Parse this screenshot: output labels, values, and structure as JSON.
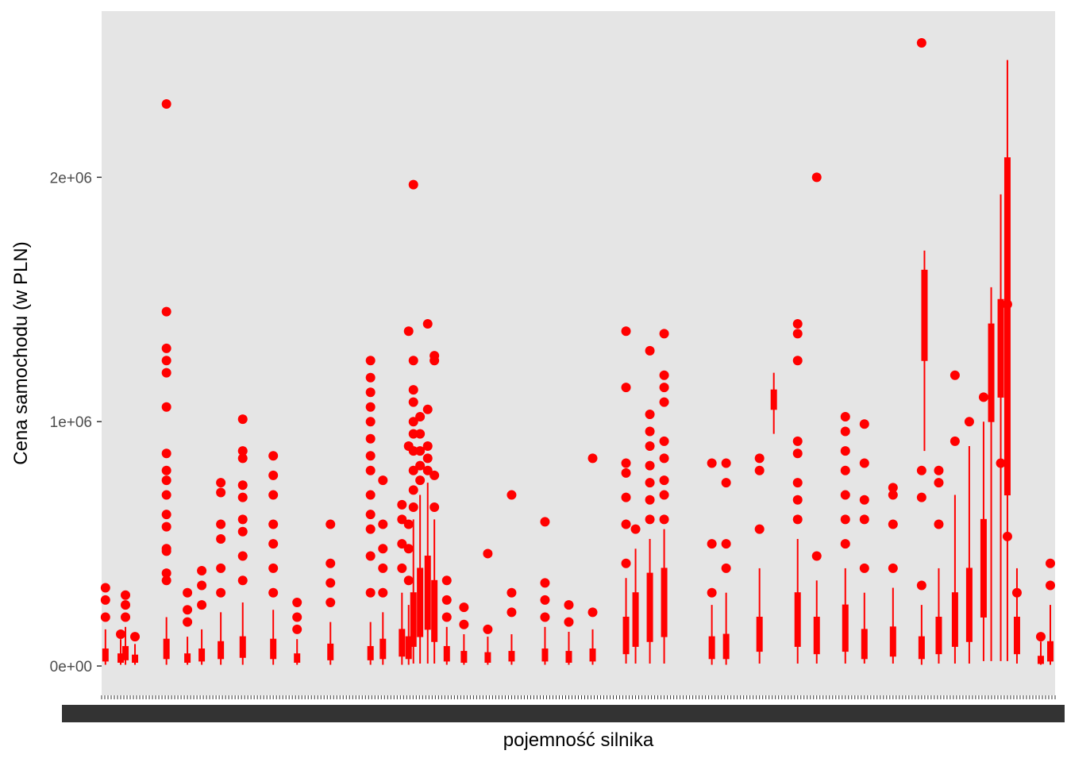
{
  "chart_data": {
    "type": "boxplot",
    "xlabel": "pojemność silnika",
    "ylabel": "Cena samochodu (w PLN)",
    "y_ticks": [
      {
        "value": 0,
        "label": "0e+00"
      },
      {
        "value": 1000000,
        "label": "1e+06"
      },
      {
        "value": 2000000,
        "label": "2e+06"
      }
    ],
    "ylim": [
      -120000,
      2680000
    ],
    "x_range": [
      0,
      100
    ],
    "x_tick_labels": "overlapping engine capacity category labels (illegible)",
    "grid": false,
    "background": "#e5e5e5",
    "color": "#ff0000",
    "boxes": [
      {
        "x": 0.4,
        "low": 5000,
        "q1": 20000,
        "q3": 70000,
        "high": 150000,
        "outliers": [
          200000,
          270000,
          320000
        ]
      },
      {
        "x": 2.0,
        "low": 5000,
        "q1": 15000,
        "q3": 50000,
        "high": 110000,
        "outliers": [
          130000
        ]
      },
      {
        "x": 2.5,
        "low": 5000,
        "q1": 25000,
        "q3": 80000,
        "high": 160000,
        "outliers": [
          200000,
          250000,
          290000
        ]
      },
      {
        "x": 3.5,
        "low": 5000,
        "q1": 15000,
        "q3": 45000,
        "high": 90000,
        "outliers": [
          120000
        ]
      },
      {
        "x": 6.8,
        "low": 5000,
        "q1": 30000,
        "q3": 110000,
        "high": 200000,
        "outliers": [
          350000,
          380000,
          470000,
          480000,
          570000,
          620000,
          700000,
          760000,
          800000,
          870000,
          1060000,
          1200000,
          1250000,
          1300000,
          1450000,
          2300000
        ]
      },
      {
        "x": 9.0,
        "low": 5000,
        "q1": 15000,
        "q3": 50000,
        "high": 120000,
        "outliers": [
          180000,
          230000,
          300000
        ]
      },
      {
        "x": 10.5,
        "low": 5000,
        "q1": 20000,
        "q3": 70000,
        "high": 150000,
        "outliers": [
          250000,
          330000,
          390000
        ]
      },
      {
        "x": 12.5,
        "low": 5000,
        "q1": 30000,
        "q3": 100000,
        "high": 220000,
        "outliers": [
          300000,
          400000,
          520000,
          580000,
          710000,
          750000
        ]
      },
      {
        "x": 14.8,
        "low": 5000,
        "q1": 35000,
        "q3": 120000,
        "high": 260000,
        "outliers": [
          350000,
          450000,
          550000,
          600000,
          690000,
          740000,
          850000,
          880000,
          1010000
        ]
      },
      {
        "x": 18.0,
        "low": 5000,
        "q1": 30000,
        "q3": 110000,
        "high": 230000,
        "outliers": [
          300000,
          400000,
          500000,
          580000,
          700000,
          780000,
          860000
        ]
      },
      {
        "x": 20.5,
        "low": 5000,
        "q1": 15000,
        "q3": 50000,
        "high": 110000,
        "outliers": [
          150000,
          200000,
          260000
        ]
      },
      {
        "x": 24.0,
        "low": 5000,
        "q1": 25000,
        "q3": 90000,
        "high": 180000,
        "outliers": [
          260000,
          340000,
          420000,
          580000
        ]
      },
      {
        "x": 28.2,
        "low": 5000,
        "q1": 25000,
        "q3": 80000,
        "high": 180000,
        "outliers": [
          300000,
          450000,
          560000,
          620000,
          700000,
          800000,
          860000,
          930000,
          1000000,
          1060000,
          1120000,
          1180000,
          1250000
        ]
      },
      {
        "x": 29.5,
        "low": 5000,
        "q1": 30000,
        "q3": 110000,
        "high": 220000,
        "outliers": [
          300000,
          400000,
          480000,
          580000,
          760000
        ]
      },
      {
        "x": 31.5,
        "low": 5000,
        "q1": 40000,
        "q3": 150000,
        "high": 300000,
        "outliers": [
          400000,
          500000,
          600000,
          660000
        ]
      },
      {
        "x": 32.2,
        "low": 5000,
        "q1": 30000,
        "q3": 120000,
        "high": 250000,
        "outliers": [
          350000,
          480000,
          580000,
          900000,
          1370000
        ]
      },
      {
        "x": 32.7,
        "low": 10000,
        "q1": 80000,
        "q3": 300000,
        "high": 600000,
        "outliers": [
          650000,
          720000,
          800000,
          880000,
          950000,
          1000000,
          1080000,
          1130000,
          1250000,
          1970000
        ]
      },
      {
        "x": 33.4,
        "low": 10000,
        "q1": 120000,
        "q3": 400000,
        "high": 700000,
        "outliers": [
          760000,
          820000,
          880000,
          950000,
          1020000
        ]
      },
      {
        "x": 34.2,
        "low": 10000,
        "q1": 150000,
        "q3": 450000,
        "high": 750000,
        "outliers": [
          800000,
          850000,
          900000,
          1050000,
          1400000
        ]
      },
      {
        "x": 34.9,
        "low": 10000,
        "q1": 100000,
        "q3": 350000,
        "high": 600000,
        "outliers": [
          650000,
          780000,
          1250000,
          1270000
        ]
      },
      {
        "x": 36.2,
        "low": 5000,
        "q1": 20000,
        "q3": 80000,
        "high": 160000,
        "outliers": [
          200000,
          270000,
          350000
        ]
      },
      {
        "x": 38.0,
        "low": 5000,
        "q1": 15000,
        "q3": 60000,
        "high": 130000,
        "outliers": [
          170000,
          240000
        ]
      },
      {
        "x": 40.5,
        "low": 5000,
        "q1": 15000,
        "q3": 55000,
        "high": 120000,
        "outliers": [
          150000,
          460000
        ]
      },
      {
        "x": 43.0,
        "low": 5000,
        "q1": 20000,
        "q3": 60000,
        "high": 130000,
        "outliers": [
          220000,
          300000,
          700000
        ]
      },
      {
        "x": 46.5,
        "low": 5000,
        "q1": 20000,
        "q3": 70000,
        "high": 160000,
        "outliers": [
          200000,
          270000,
          340000,
          590000
        ]
      },
      {
        "x": 49.0,
        "low": 5000,
        "q1": 15000,
        "q3": 60000,
        "high": 140000,
        "outliers": [
          180000,
          250000
        ]
      },
      {
        "x": 51.5,
        "low": 5000,
        "q1": 20000,
        "q3": 70000,
        "high": 150000,
        "outliers": [
          220000,
          850000
        ]
      },
      {
        "x": 55.0,
        "low": 10000,
        "q1": 50000,
        "q3": 200000,
        "high": 360000,
        "outliers": [
          420000,
          580000,
          690000,
          790000,
          830000,
          1140000,
          1370000
        ]
      },
      {
        "x": 56.0,
        "low": 10000,
        "q1": 80000,
        "q3": 300000,
        "high": 480000,
        "outliers": [
          560000
        ]
      },
      {
        "x": 57.5,
        "low": 10000,
        "q1": 100000,
        "q3": 380000,
        "high": 520000,
        "outliers": [
          600000,
          680000,
          750000,
          820000,
          900000,
          960000,
          1030000,
          1290000
        ]
      },
      {
        "x": 59.0,
        "low": 10000,
        "q1": 120000,
        "q3": 400000,
        "high": 560000,
        "outliers": [
          600000,
          700000,
          760000,
          850000,
          920000,
          1080000,
          1140000,
          1190000,
          1360000
        ]
      },
      {
        "x": 64.0,
        "low": 5000,
        "q1": 30000,
        "q3": 120000,
        "high": 250000,
        "outliers": [
          300000,
          500000,
          830000
        ]
      },
      {
        "x": 65.5,
        "low": 5000,
        "q1": 30000,
        "q3": 130000,
        "high": 300000,
        "outliers": [
          400000,
          500000,
          750000,
          830000
        ]
      },
      {
        "x": 69.0,
        "low": 10000,
        "q1": 60000,
        "q3": 200000,
        "high": 400000,
        "outliers": [
          560000,
          800000,
          850000
        ]
      },
      {
        "x": 70.5,
        "low": 950000,
        "q1": 1050000,
        "q3": 1130000,
        "high": 1200000,
        "outliers": []
      },
      {
        "x": 73.0,
        "low": 10000,
        "q1": 80000,
        "q3": 300000,
        "high": 520000,
        "outliers": [
          600000,
          680000,
          750000,
          870000,
          920000,
          1250000,
          1360000,
          1400000
        ]
      },
      {
        "x": 75.0,
        "low": 10000,
        "q1": 50000,
        "q3": 200000,
        "high": 350000,
        "outliers": [
          450000,
          2000000
        ]
      },
      {
        "x": 78.0,
        "low": 10000,
        "q1": 60000,
        "q3": 250000,
        "high": 400000,
        "outliers": [
          500000,
          600000,
          700000,
          800000,
          880000,
          960000,
          1020000
        ]
      },
      {
        "x": 80.0,
        "low": 10000,
        "q1": 30000,
        "q3": 150000,
        "high": 300000,
        "outliers": [
          400000,
          600000,
          680000,
          830000,
          990000
        ]
      },
      {
        "x": 83.0,
        "low": 10000,
        "q1": 40000,
        "q3": 160000,
        "high": 320000,
        "outliers": [
          400000,
          580000,
          700000,
          730000
        ]
      },
      {
        "x": 86.0,
        "low": 5000,
        "q1": 30000,
        "q3": 120000,
        "high": 250000,
        "outliers": [
          330000,
          690000,
          800000,
          2550000
        ]
      },
      {
        "x": 86.3,
        "low": 880000,
        "q1": 1250000,
        "q3": 1620000,
        "high": 1700000,
        "outliers": []
      },
      {
        "x": 87.8,
        "low": 10000,
        "q1": 50000,
        "q3": 200000,
        "high": 400000,
        "outliers": [
          580000,
          750000,
          800000
        ]
      },
      {
        "x": 89.5,
        "low": 10000,
        "q1": 80000,
        "q3": 300000,
        "high": 700000,
        "outliers": [
          920000,
          1190000
        ]
      },
      {
        "x": 91.0,
        "low": 10000,
        "q1": 100000,
        "q3": 400000,
        "high": 900000,
        "outliers": [
          1000000
        ]
      },
      {
        "x": 92.5,
        "low": 20000,
        "q1": 200000,
        "q3": 600000,
        "high": 1000000,
        "outliers": [
          1100000
        ]
      },
      {
        "x": 93.3,
        "low": 20000,
        "q1": 1000000,
        "q3": 1400000,
        "high": 1550000,
        "outliers": []
      },
      {
        "x": 94.3,
        "low": 20000,
        "q1": 1100000,
        "q3": 1500000,
        "high": 1930000,
        "outliers": [
          830000
        ]
      },
      {
        "x": 95.0,
        "low": 20000,
        "q1": 700000,
        "q3": 2080000,
        "high": 2480000,
        "outliers": [
          530000,
          1480000
        ]
      },
      {
        "x": 96.0,
        "low": 10000,
        "q1": 50000,
        "q3": 200000,
        "high": 400000,
        "outliers": [
          300000
        ]
      },
      {
        "x": 98.5,
        "low": 5000,
        "q1": 10000,
        "q3": 40000,
        "high": 100000,
        "outliers": [
          120000
        ]
      },
      {
        "x": 99.5,
        "low": 5000,
        "q1": 20000,
        "q3": 100000,
        "high": 250000,
        "outliers": [
          330000,
          420000
        ]
      }
    ]
  }
}
